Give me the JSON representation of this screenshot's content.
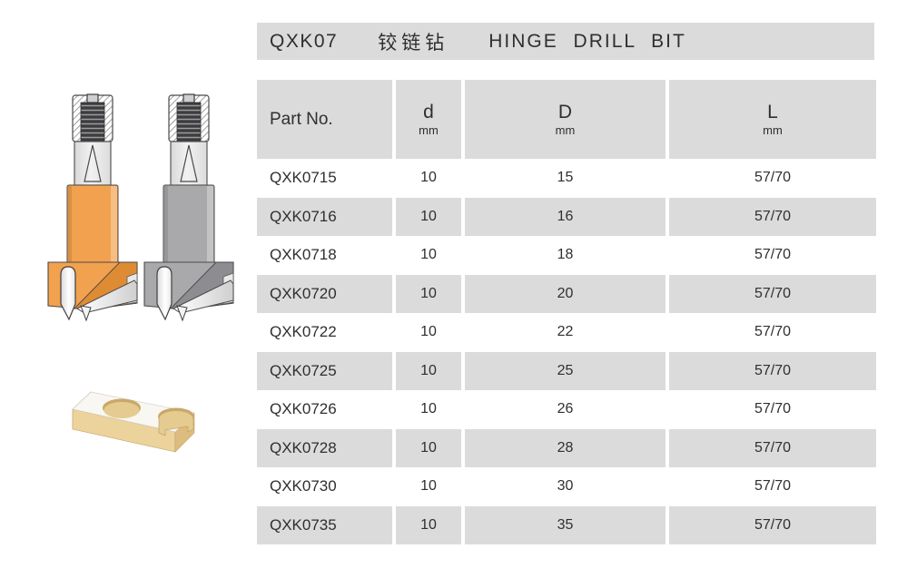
{
  "title": {
    "model": "QXK07",
    "name_cn": "铰链钻",
    "name_en": "HINGE DRILL BIT"
  },
  "table": {
    "columns": [
      {
        "key": "part",
        "label": "Part No.",
        "unit": ""
      },
      {
        "key": "d",
        "label": "d",
        "unit": "mm"
      },
      {
        "key": "D",
        "label": "D",
        "unit": "mm"
      },
      {
        "key": "L",
        "label": "L",
        "unit": "mm"
      }
    ],
    "rows": [
      [
        "QXK0715",
        "10",
        "15",
        "57/70"
      ],
      [
        "QXK0716",
        "10",
        "16",
        "57/70"
      ],
      [
        "QXK0718",
        "10",
        "18",
        "57/70"
      ],
      [
        "QXK0720",
        "10",
        "20",
        "57/70"
      ],
      [
        "QXK0722",
        "10",
        "22",
        "57/70"
      ],
      [
        "QXK0725",
        "10",
        "25",
        "57/70"
      ],
      [
        "QXK0726",
        "10",
        "26",
        "57/70"
      ],
      [
        "QXK0728",
        "10",
        "28",
        "57/70"
      ],
      [
        "QXK0730",
        "10",
        "30",
        "57/70"
      ],
      [
        "QXK0735",
        "10",
        "35",
        "57/70"
      ]
    ]
  },
  "illustrations": {
    "drill_bits": [
      {
        "name": "hinge-drill-bit-orange",
        "body_color": "#f2a14f",
        "body_dark": "#de8c33"
      },
      {
        "name": "hinge-drill-bit-gray",
        "body_color": "#a9a9ac",
        "body_dark": "#8d8d91"
      }
    ],
    "wood_block": {
      "name": "wood-block-with-hinge-cup-holes",
      "top_color": "#f8f7f2",
      "front_color": "#ecd29b",
      "side_color": "#ddbd7f",
      "hole_color": "#e6cb90",
      "hole_wall_color": "#c9a86a"
    }
  },
  "colors": {
    "band_gray": "#dbdbdb",
    "text": "#2f2f2f",
    "background": "#ffffff"
  }
}
